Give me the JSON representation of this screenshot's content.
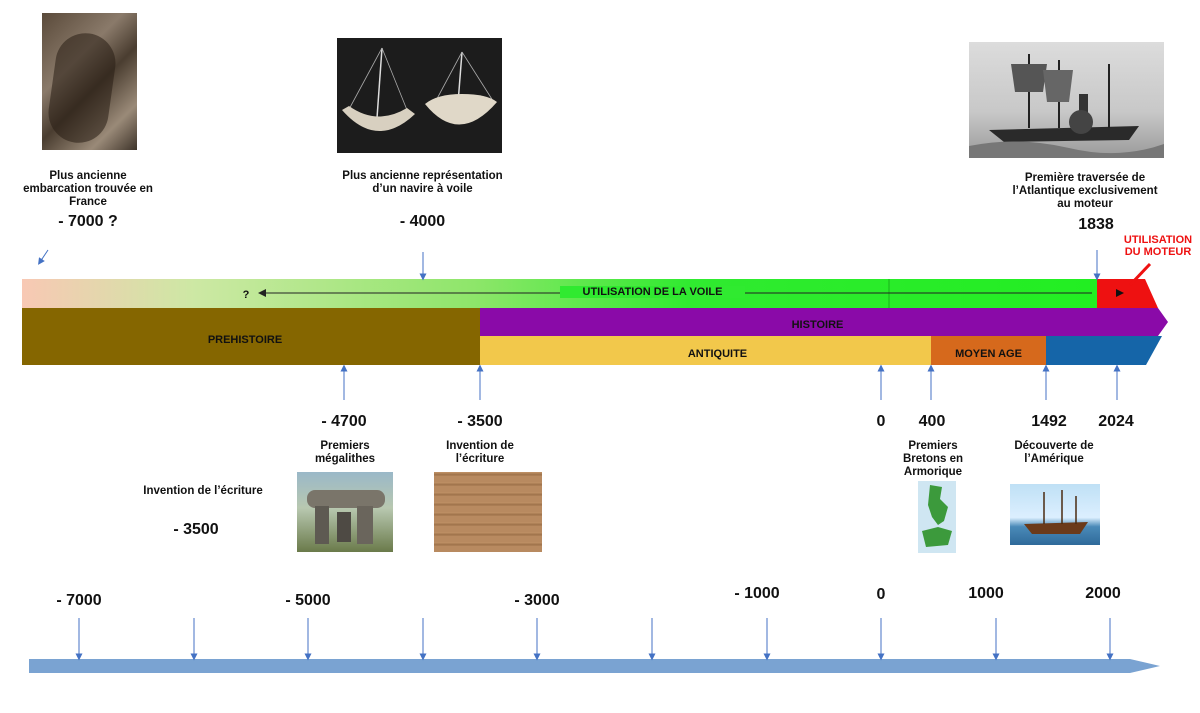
{
  "top_events": {
    "boat": {
      "caption": "Plus ancienne embarcation trouvée en France",
      "year": "- 7000 ?"
    },
    "sail": {
      "caption": "Plus ancienne représentation d’un navire à voile",
      "year": "- 4000"
    },
    "steam": {
      "caption": "Première traversée de l’Atlantique exclusivement au moteur",
      "year": "1838"
    }
  },
  "bands": {
    "voile": "UTILISATION DE LA VOILE",
    "question": "?",
    "moteur": "UTILISATION DU MOTEUR",
    "prehistoire": "PREHISTOIRE",
    "histoire": "HISTOIRE",
    "antiquite": "ANTIQUITE",
    "moyen_age": "MOYEN AGE"
  },
  "bottom_events": {
    "megalithes": {
      "year": "- 4700",
      "caption": "Premiers mégalithes"
    },
    "ecriture": {
      "year": "- 3500",
      "caption": "Invention de l’écriture"
    },
    "zero": {
      "year": "0"
    },
    "bretons": {
      "year": "400",
      "caption": "Premiers Bretons en Armorique"
    },
    "amerique": {
      "year": "1492",
      "caption": "Découverte de l’Amérique"
    },
    "now": {
      "year": "2024"
    }
  },
  "side_note": {
    "caption": "Invention de l’écriture",
    "year": "- 3500"
  },
  "scale": {
    "labels": [
      "- 7000",
      "- 5000",
      "- 3000",
      "- 1000",
      "0",
      "1000",
      "2000"
    ]
  },
  "colors": {
    "voile": "#22ee22",
    "moteur": "#ee1111",
    "prehistoire": "#856600",
    "histoire": "#8a0aa8",
    "antiquite": "#f2c84b",
    "moyen_age": "#d6691c",
    "modern": "#1565a8",
    "arrow": "#4472c4",
    "scale_bar": "#7aa3d2"
  }
}
